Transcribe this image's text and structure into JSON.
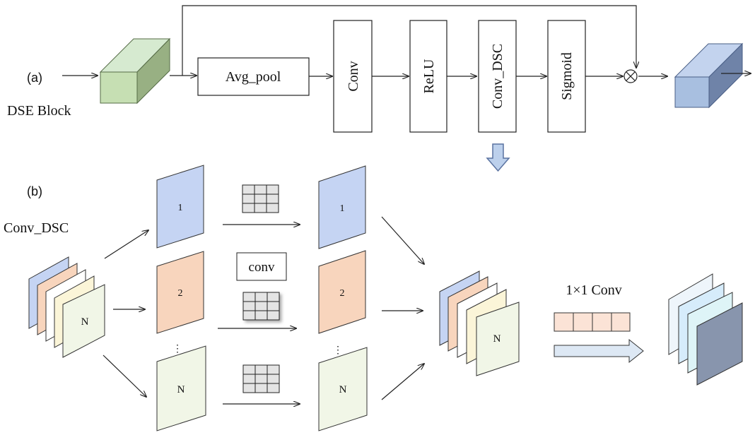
{
  "section_a": {
    "label": "(a)",
    "title": "DSE Block",
    "blocks": {
      "avg_pool": "Avg_pool",
      "conv": "Conv",
      "relu": "ReLU",
      "conv_dsc": "Conv_DSC",
      "sigmoid": "Sigmoid"
    },
    "multiply_symbol": "⊗"
  },
  "section_b": {
    "label": "(b)",
    "title": "Conv_DSC",
    "channel_labels": {
      "c1": "1",
      "c2": "2",
      "cn": "N"
    },
    "conv_label": "conv",
    "ellipsis": "⋮",
    "pointwise_label": "1×1 Conv"
  },
  "colors": {
    "input_cube": "#c6dfb3",
    "output_cube": "#a8bfe0",
    "channel_blue": "#c5d4f3",
    "channel_orange": "#f8d5bd",
    "channel_green": "#f1f6e7",
    "kernel_fill": "#fbe3d6"
  }
}
